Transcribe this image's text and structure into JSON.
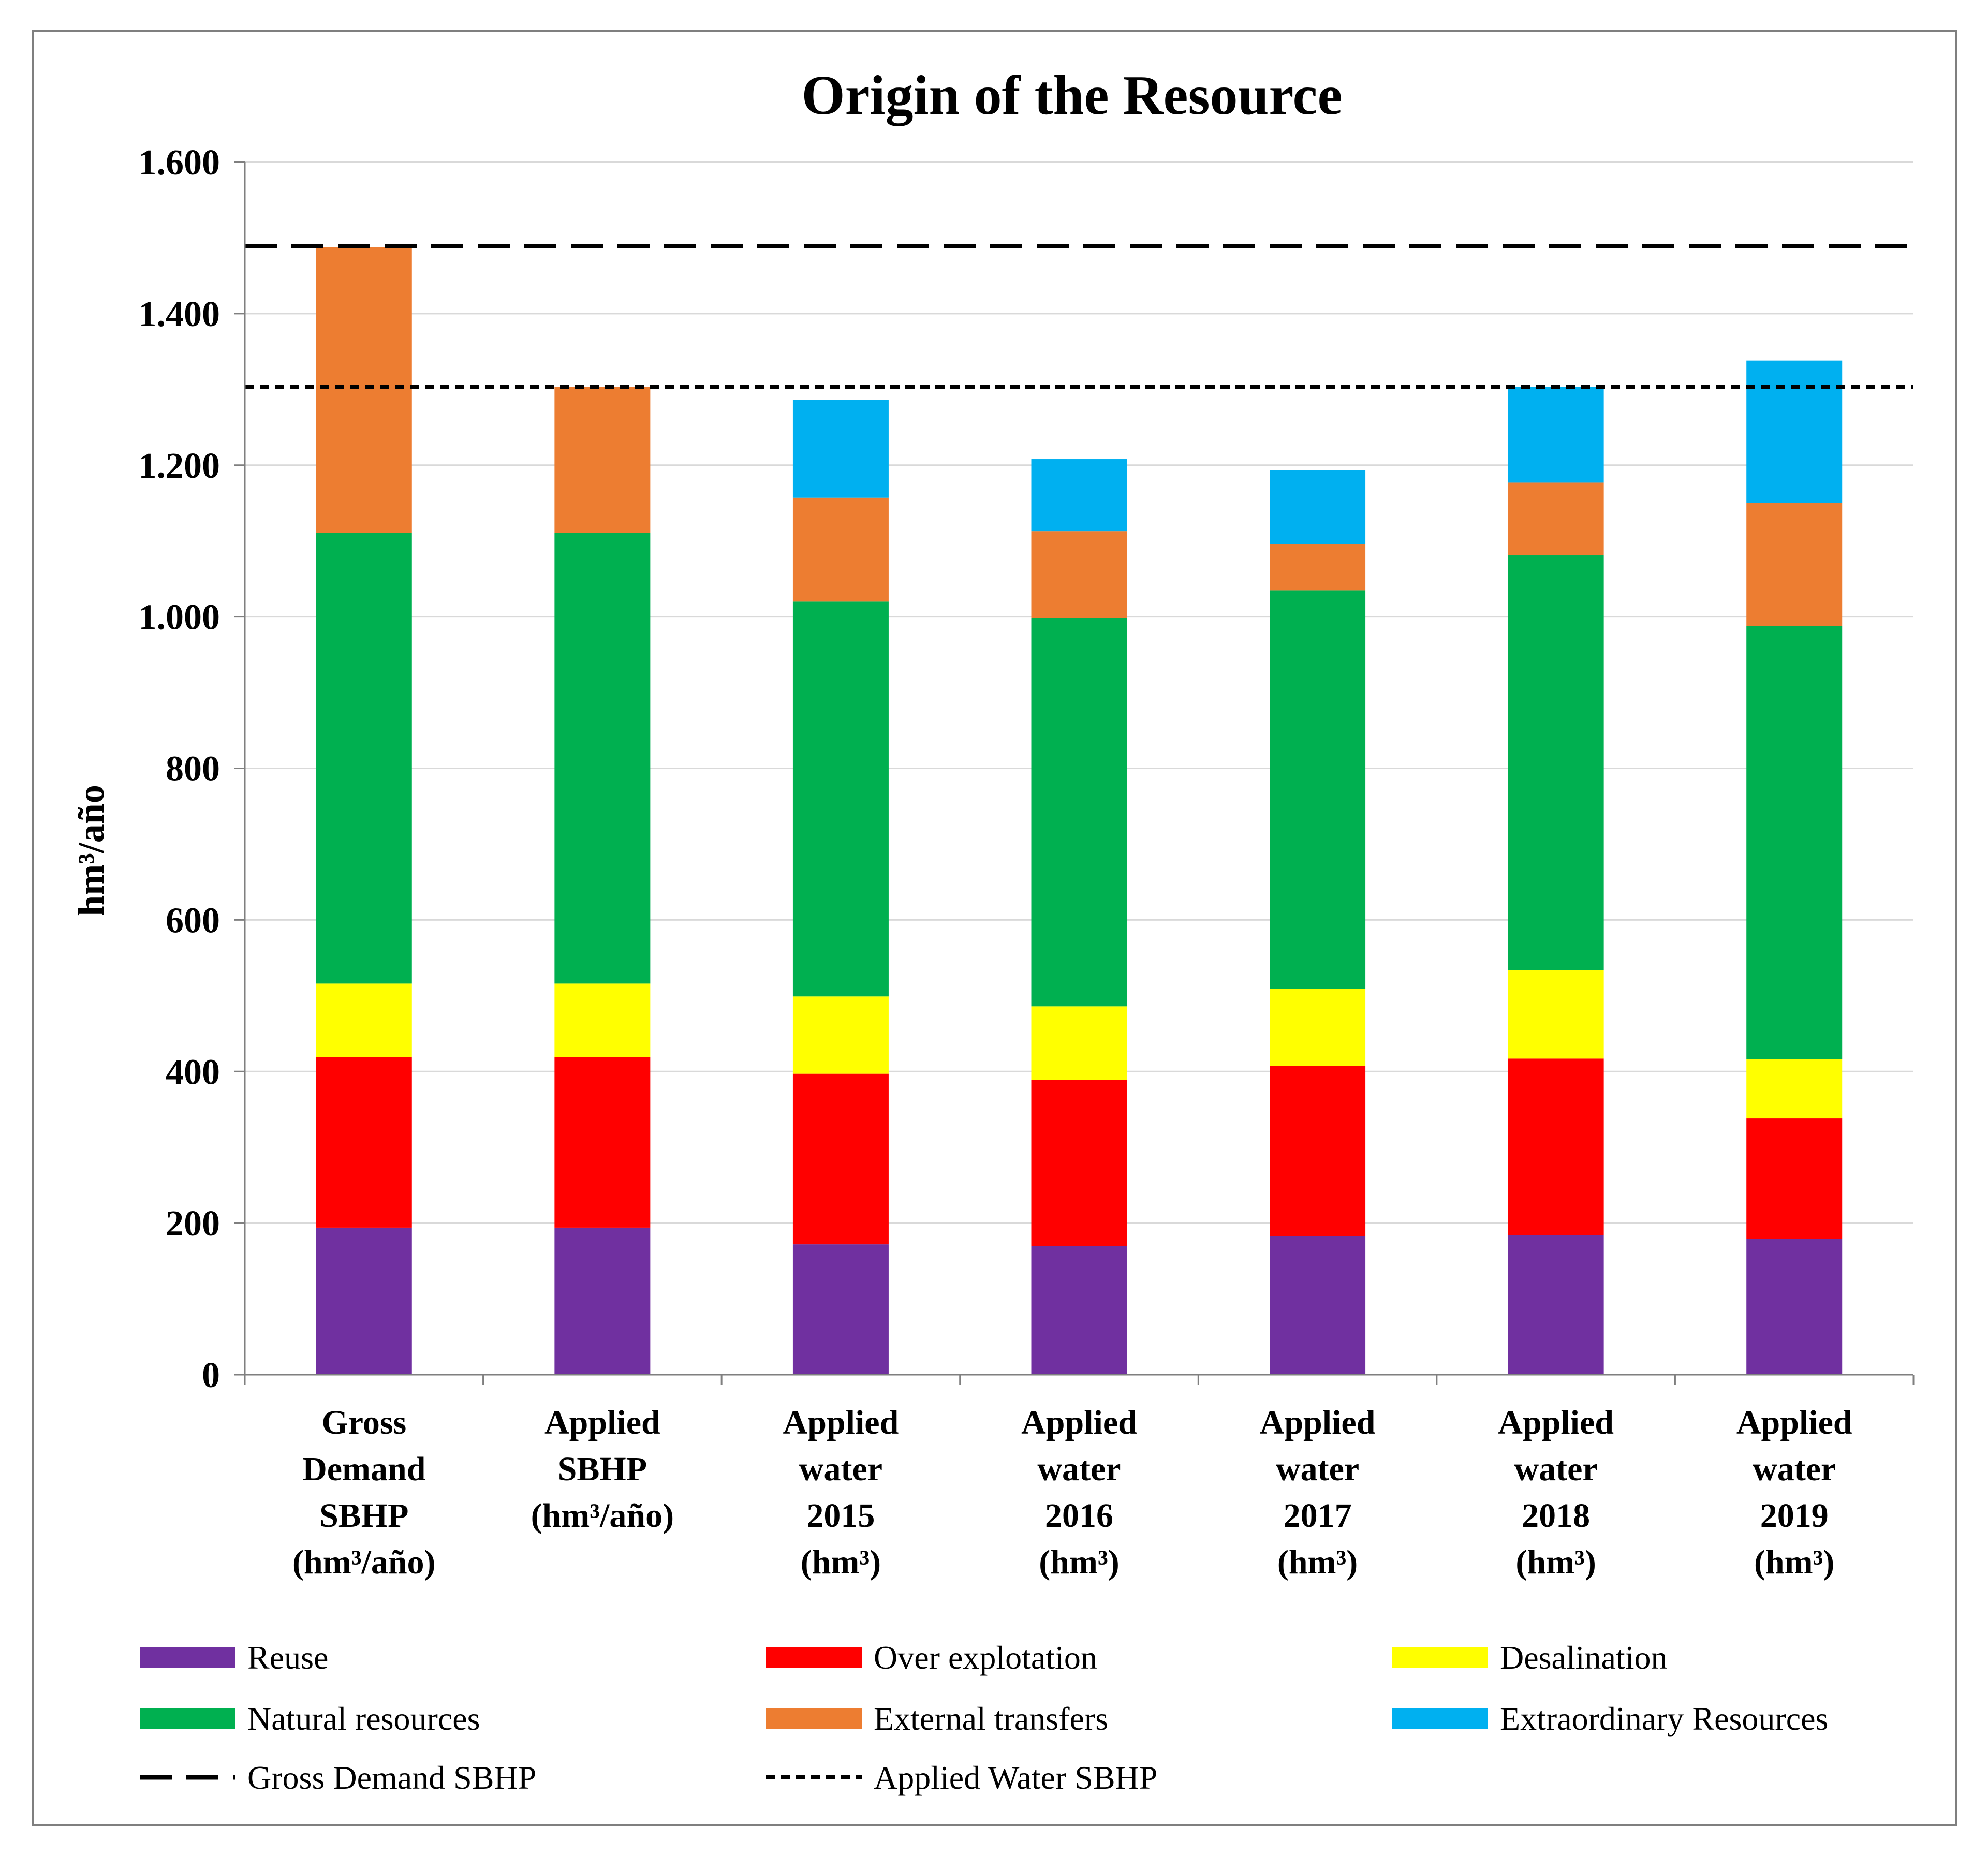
{
  "chart_data": {
    "type": "bar",
    "stacked": true,
    "title": "Origin of the Resource",
    "xlabel": "",
    "ylabel": "hm³/año",
    "ylim": [
      0,
      1600
    ],
    "y_ticks": [
      0,
      200,
      400,
      600,
      800,
      1000,
      1200,
      1400,
      1600
    ],
    "y_tick_labels": [
      "0",
      "200",
      "400",
      "600",
      "800",
      "1.000",
      "1.200",
      "1.400",
      "1.600"
    ],
    "grid": true,
    "legend_position": "bottom",
    "categories": [
      [
        "Gross",
        "Demand",
        "SBHP",
        "(hm³/año)"
      ],
      [
        "Applied",
        "SBHP",
        "(hm³/año)"
      ],
      [
        "Applied",
        "water",
        "2015",
        "(hm³)"
      ],
      [
        "Applied",
        "water",
        "2016",
        "(hm³)"
      ],
      [
        "Applied",
        "water",
        "2017",
        "(hm³)"
      ],
      [
        "Applied",
        "water",
        "2018",
        "(hm³)"
      ],
      [
        "Applied",
        "water",
        "2019",
        "(hm³)"
      ]
    ],
    "series": [
      {
        "name": "Reuse",
        "color": "#7030A0",
        "values": [
          194,
          194,
          172,
          170,
          183,
          184,
          179
        ]
      },
      {
        "name": "Over explotation",
        "color": "#FF0000",
        "values": [
          225,
          225,
          225,
          219,
          224,
          233,
          159
        ]
      },
      {
        "name": "Desalination",
        "color": "#FFFF00",
        "values": [
          97,
          97,
          102,
          97,
          102,
          117,
          78
        ]
      },
      {
        "name": "Natural resources",
        "color": "#00B050",
        "values": [
          595,
          595,
          521,
          512,
          526,
          547,
          572
        ]
      },
      {
        "name": "External transfers",
        "color": "#ED7D31",
        "values": [
          377,
          192,
          137,
          115,
          61,
          96,
          162
        ]
      },
      {
        "name": "Extraordinary Resources",
        "color": "#00B0F0",
        "values": [
          0,
          0,
          129,
          95,
          97,
          126,
          188
        ]
      }
    ],
    "reference_lines": [
      {
        "name": "Gross Demand SBHP",
        "value": 1489,
        "style": "long-dash"
      },
      {
        "name": "Applied Water SBHP",
        "value": 1303,
        "style": "short-dash"
      }
    ]
  }
}
